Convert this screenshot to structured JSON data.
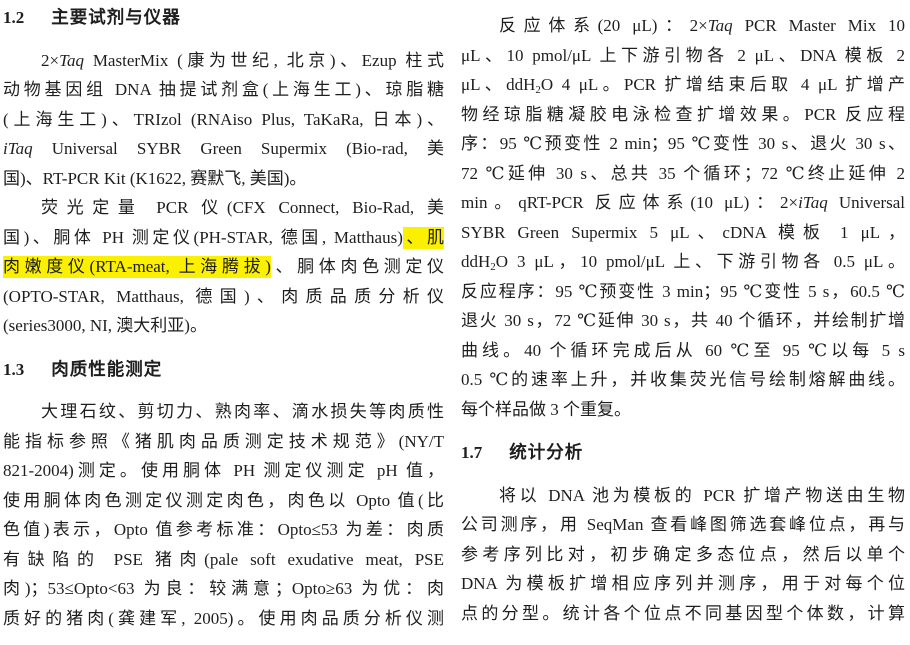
{
  "document": {
    "kind": "academic-paper-page",
    "language": "zh-CN",
    "background_color": "#ffffff",
    "text_color": "#1e1e1e",
    "highlight_color": "#fbf000",
    "columns": {
      "left": {
        "blocks": [
          {
            "type": "heading",
            "num": "1.2",
            "title": "主要试剂与仪器"
          },
          {
            "type": "paragraph",
            "continues": false,
            "lines": [
              [
                {
                  "t": "2×"
                },
                {
                  "t": "Taq",
                  "i": true
                },
                {
                  "t": " MasterMix (康为世纪, 北京)、Ezup 柱式"
                }
              ],
              [
                {
                  "t": "动物基因组 DNA 抽提试剂盒(上海生工)、琼脂糖"
                }
              ],
              [
                {
                  "t": "(上海生工)、TRIzol (RNAiso Plus, TaKaRa, 日本)、"
                }
              ],
              [
                {
                  "t": "iTaq",
                  "i": true
                },
                {
                  "t": " Universal SYBR Green Supermix (Bio-rad, 美"
                }
              ],
              [
                {
                  "t": "国)、RT-PCR Kit (K1622, 赛默飞, 美国)。"
                }
              ]
            ]
          },
          {
            "type": "paragraph",
            "continues": false,
            "lines": [
              [
                {
                  "t": "荧光定量 PCR 仪(CFX Connect, Bio-Rad, 美"
                }
              ],
              [
                {
                  "t": "国)、胴体 PH 测定仪(PH-STAR, 德国, Matthaus)"
                },
                {
                  "t": "、肌",
                  "hl": true
                }
              ],
              [
                {
                  "t": "肉嫩度仪(RTA-meat, 上海腾拔)",
                  "hl": true
                },
                {
                  "t": "、胴体肉色测定仪"
                }
              ],
              [
                {
                  "t": "(OPTO-STAR, Matthaus, 德国)、肉质品质分析仪"
                }
              ],
              [
                {
                  "t": "(series3000, NI, 澳大利亚)。"
                }
              ]
            ]
          },
          {
            "type": "heading",
            "num": "1.3",
            "title": "肉质性能测定"
          },
          {
            "type": "paragraph",
            "continues": true,
            "lines": [
              [
                {
                  "t": "大理石纹、剪切力、熟肉率、滴水损失等肉质性"
                }
              ],
              [
                {
                  "t": "能指标参照《猪肌肉品质测定技术规范》(NY/T"
                }
              ],
              [
                {
                  "t": "821-2004)测定。使用胴体 PH 测定仪测定 pH 值，"
                }
              ],
              [
                {
                  "t": "使用胴体肉色测定仪测定肉色，肉色以 Opto 值(比"
                }
              ],
              [
                {
                  "t": "色值)表示，Opto 值参考标准：Opto≤53 为差：肉质"
                }
              ],
              [
                {
                  "t": "有缺陷的 PSE 猪肉(pale soft exudative meat, PSE"
                }
              ],
              [
                {
                  "t": "肉)；53≤Opto<63 为良：较满意；Opto≥63 为优：肉"
                }
              ],
              [
                {
                  "t": "质好的猪肉(龚建军, 2005)。使用肉品质分析仪测"
                }
              ]
            ]
          }
        ]
      },
      "right": {
        "blocks": [
          {
            "type": "paragraph",
            "continues": false,
            "lines": [
              [
                {
                  "t": "反应体系(20 μL)：2×"
                },
                {
                  "t": "Taq",
                  "i": true
                },
                {
                  "t": " PCR Master Mix 10"
                }
              ],
              [
                {
                  "t": "μL、10 pmol/μL 上下游引物各 2 μL、DNA 模板 2"
                }
              ],
              [
                {
                  "t": "μL、ddH"
                },
                {
                  "t": "2",
                  "sub": true
                },
                {
                  "t": "O 4 μL。PCR 扩增结束后取 4 μL 扩增产"
                }
              ],
              [
                {
                  "t": "物经琼脂糖凝胶电泳检查扩增效果。PCR 反应程"
                }
              ],
              [
                {
                  "t": "序：95 ℃预变性 2 min；95 ℃变性 30 s、退火 30 s、"
                }
              ],
              [
                {
                  "t": "72 ℃延伸 30 s、总共 35 个循环；72 ℃终止延伸 2"
                }
              ],
              [
                {
                  "t": "min。qRT-PCR 反应体系(10 μL)：2×"
                },
                {
                  "t": "iTaq",
                  "i": true
                },
                {
                  "t": " Universal"
                }
              ],
              [
                {
                  "t": "SYBR Green Supermix 5 μL、cDNA 模板 1 μL，"
                }
              ],
              [
                {
                  "t": "ddH"
                },
                {
                  "t": "2",
                  "sub": true
                },
                {
                  "t": "O 3 μL，10 pmol/μL 上、下游引物各 0.5 μL。"
                }
              ],
              [
                {
                  "t": "反应程序：95 ℃预变性 3 min；95 ℃变性 5 s，60.5 ℃"
                }
              ],
              [
                {
                  "t": "退火 30 s，72 ℃延伸 30 s，共 40 个循环，并绘制扩增"
                }
              ],
              [
                {
                  "t": "曲线。40 个循环完成后从 60 ℃至 95 ℃以每 5 s"
                }
              ],
              [
                {
                  "t": "0.5 ℃的速率上升，并收集荧光信号绘制熔解曲线。"
                }
              ],
              [
                {
                  "t": "每个样品做 3 个重复。"
                }
              ]
            ]
          },
          {
            "type": "heading",
            "num": "1.7",
            "title": "统计分析"
          },
          {
            "type": "paragraph",
            "continues": true,
            "lines": [
              [
                {
                  "t": "将以 DNA 池为模板的 PCR 扩增产物送由生物"
                }
              ],
              [
                {
                  "t": "公司测序，用 SeqMan 查看峰图筛选套峰位点，再与"
                }
              ],
              [
                {
                  "t": "参考序列比对，初步确定多态位点，然后以单个"
                }
              ],
              [
                {
                  "t": "DNA 为模板扩增相应序列并测序，用于对每个位"
                }
              ],
              [
                {
                  "t": "点的分型。统计各个位点不同基因型个体数，计算"
                }
              ]
            ]
          }
        ]
      }
    }
  }
}
